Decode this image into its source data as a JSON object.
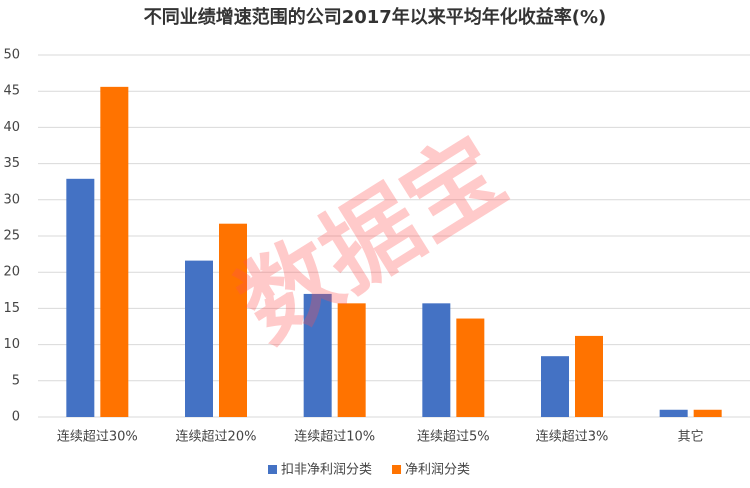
{
  "chart_data": {
    "type": "bar",
    "title": "不同业绩增速范围的公司2017年以来平均年化收益率(%)",
    "categories": [
      "连续超过30%",
      "连续超过20%",
      "连续超过10%",
      "连续超过5%",
      "连续超过3%",
      "其它"
    ],
    "series": [
      {
        "name": "扣非净利润分类",
        "color": "#4472c4",
        "values": [
          32.9,
          21.6,
          17.0,
          15.7,
          8.4,
          1.0
        ]
      },
      {
        "name": "净利润分类",
        "color": "#ff7300",
        "values": [
          45.6,
          26.7,
          15.7,
          13.6,
          11.2,
          1.0
        ]
      }
    ],
    "ylim": [
      0,
      50
    ],
    "yticks": [
      0,
      5,
      10,
      15,
      20,
      25,
      30,
      35,
      40,
      45,
      50
    ],
    "grid": true,
    "legend": "bottom",
    "watermark": "数据宝"
  }
}
